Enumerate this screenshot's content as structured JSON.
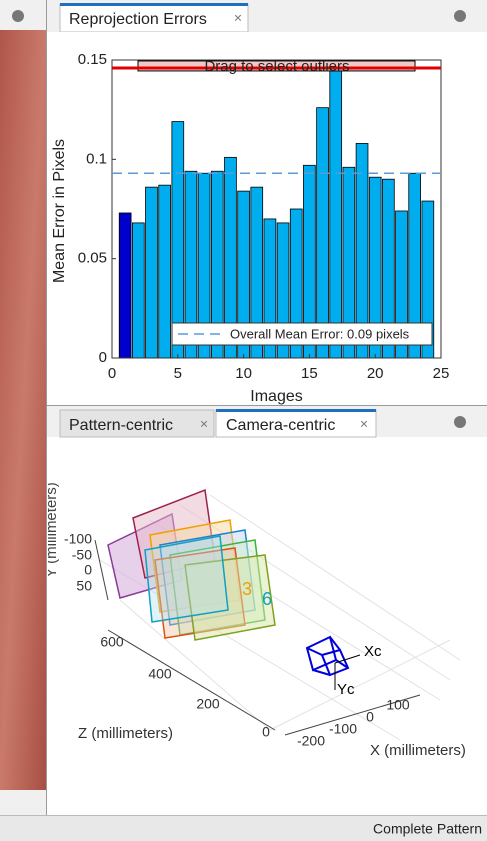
{
  "top_panel": {
    "tab": "Reprojection Errors"
  },
  "chart_data": {
    "type": "bar",
    "overlay_label": "Drag to select outliers",
    "ylabel": "Mean Error in Pixels",
    "xlabel": "Images",
    "x": [
      1,
      2,
      3,
      4,
      5,
      6,
      7,
      8,
      9,
      10,
      11,
      12,
      13,
      14,
      15,
      16,
      17,
      18,
      19,
      20,
      21,
      22,
      23,
      24
    ],
    "values": [
      0.073,
      0.068,
      0.086,
      0.087,
      0.119,
      0.094,
      0.093,
      0.094,
      0.101,
      0.084,
      0.086,
      0.07,
      0.068,
      0.075,
      0.097,
      0.126,
      0.146,
      0.096,
      0.108,
      0.091,
      0.09,
      0.074,
      0.093,
      0.079
    ],
    "colors": [
      "#0000cc",
      "#00aef0",
      "#00aef0",
      "#00aef0",
      "#00aef0",
      "#00aef0",
      "#00aef0",
      "#00aef0",
      "#00aef0",
      "#00aef0",
      "#00aef0",
      "#00aef0",
      "#00aef0",
      "#00aef0",
      "#00aef0",
      "#00aef0",
      "#00aef0",
      "#00aef0",
      "#00aef0",
      "#00aef0",
      "#00aef0",
      "#00aef0",
      "#00aef0",
      "#00aef0"
    ],
    "xlim": [
      0,
      25
    ],
    "xticks": [
      0,
      5,
      10,
      15,
      20,
      25
    ],
    "ylim": [
      0,
      0.15
    ],
    "yticks": [
      0,
      0.05,
      0.1,
      0.15
    ],
    "mean_line": {
      "value": 0.093,
      "label": "Overall Mean Error: 0.09 pixels",
      "color": "#5b9bd5"
    },
    "threshold": {
      "value": 0.146,
      "color": "#e00000"
    }
  },
  "bottom_panel": {
    "tabs": [
      "Pattern-centric",
      "Camera-centric"
    ],
    "plot3d": {
      "y_ticks": [
        "-100",
        "-50",
        "0",
        "50"
      ],
      "z_ticks": [
        "600",
        "400",
        "200",
        "0"
      ],
      "x_ticks": [
        "-200",
        "-100",
        "0",
        "100"
      ],
      "zlabel": "Z (millimeters)",
      "xlabel": "X (millimeters)",
      "ylabel": "Y (millimeters)",
      "camera_x": "Xc",
      "camera_y": "Yc"
    }
  },
  "status": "Complete Pattern"
}
